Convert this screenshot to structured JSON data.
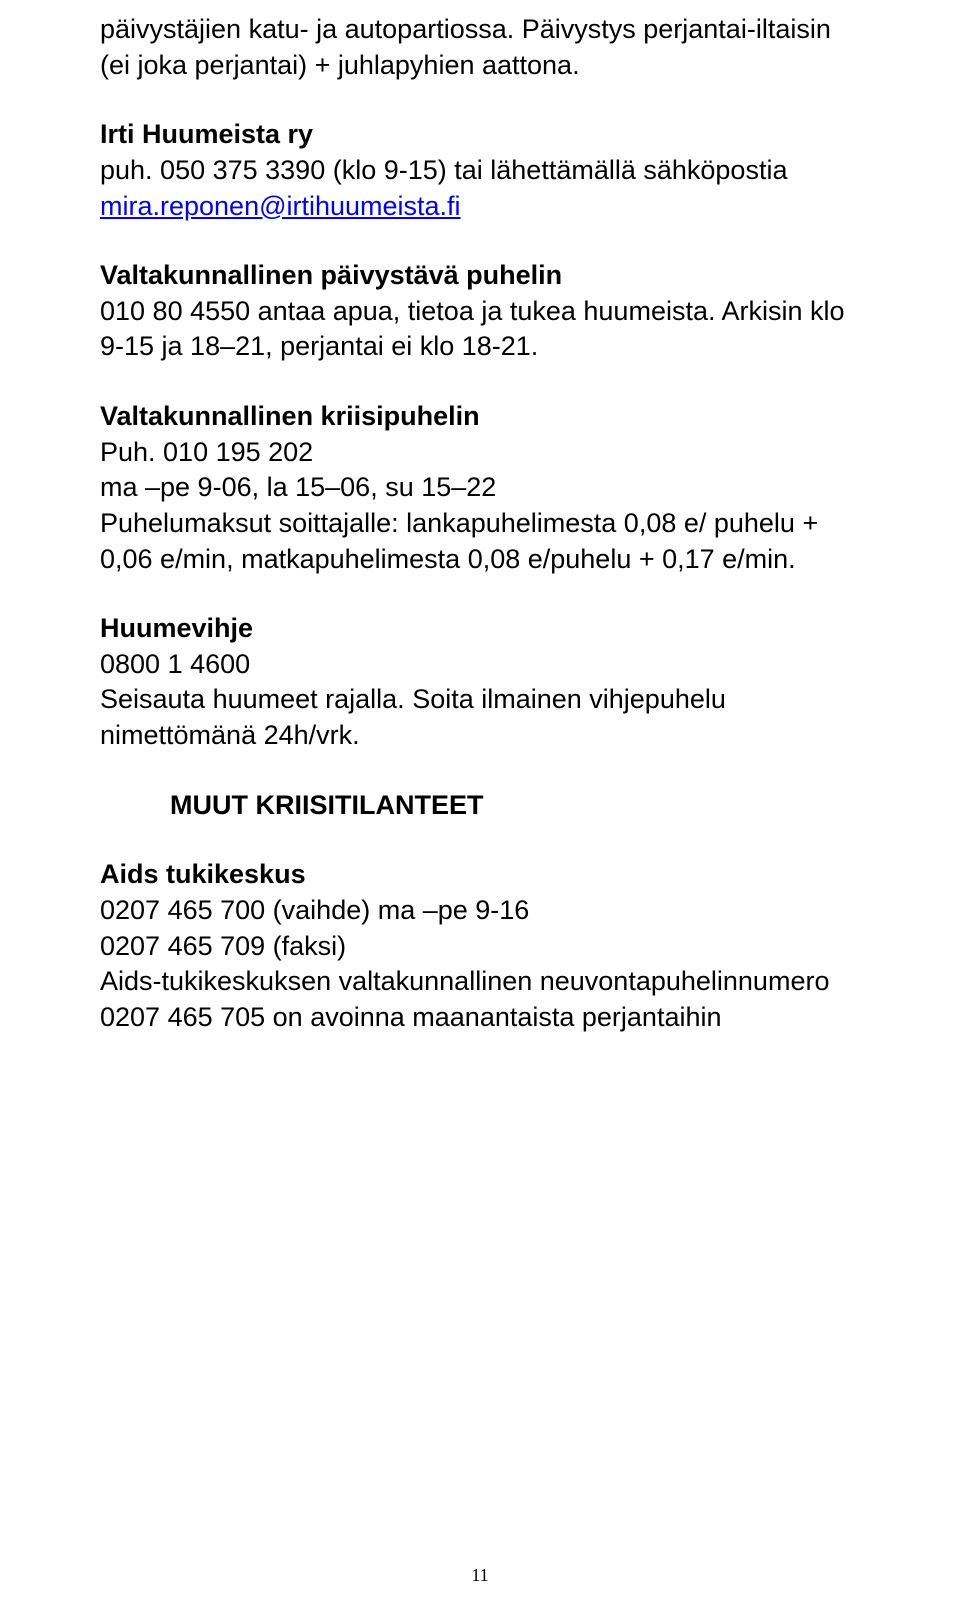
{
  "p1_intro": "päivystäjien katu- ja autopartiossa. Päivystys perjantai-iltaisin (ei joka perjantai) + juhlapyhien aattona.",
  "org1_name": "Irti Huumeista ry",
  "org1_body_before": "puh. 050 375 3390 (klo 9-15) tai lähettämällä sähköpostia ",
  "org1_email": "mira.reponen@irtihuumeista.fi",
  "org2_name": "Valtakunnallinen päivystävä puhelin",
  "org2_body": "010 80 4550 antaa apua, tietoa ja tukea huumeista. Arkisin klo 9-15 ja 18–21, perjantai ei  klo 18-21.",
  "org3_name": "Valtakunnallinen kriisipuhelin",
  "org3_body": "Puh. 010 195 202\nma –pe 9-06, la 15–06, su 15–22\nPuhelumaksut soittajalle: lankapuhelimesta 0,08 e/ puhelu + 0,06 e/min, matkapuhelimesta 0,08 e/puhelu + 0,17 e/min.",
  "org4_name": "Huumevihje",
  "org4_body": "0800 1 4600\nSeisauta huumeet rajalla. Soita ilmainen vihjepuhelu nimettömänä 24h/vrk.",
  "section_heading": "MUUT KRIISITILANTEET",
  "org5_name": "Aids tukikeskus",
  "org5_body": "0207 465 700 (vaihde) ma –pe 9-16\n0207 465 709 (faksi)\nAids-tukikeskuksen valtakunnallinen neuvontapuhelinnumero 0207 465 705 on avoinna maanantaista perjantaihin",
  "page_number": "11"
}
